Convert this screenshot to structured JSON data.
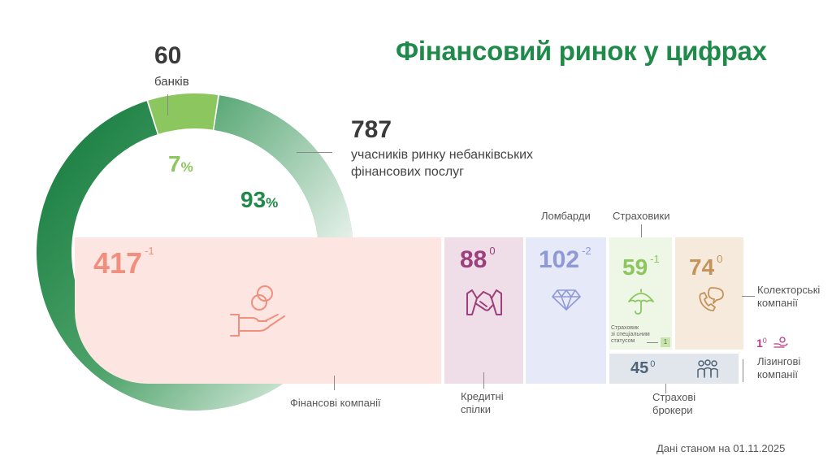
{
  "title": "Фінансовий ринок у цифрах",
  "banks": {
    "value": "60",
    "label": "банків",
    "percent": "7",
    "percent_sign": "%"
  },
  "nonbank": {
    "value": "787",
    "label_line1": "учасників ринку небанківських",
    "label_line2": "фінансових послуг",
    "percent": "93",
    "percent_sign": "%"
  },
  "segments": {
    "finance": {
      "value": "417",
      "change": "-1",
      "label": "Фінансові компанії",
      "color": "#f08f7e",
      "bg": "#fde6e2"
    },
    "credit_unions": {
      "value": "88",
      "change": "0",
      "label_line1": "Кредитні",
      "label_line2": "спілки",
      "color": "#9c3f7c",
      "bg": "#efdde7"
    },
    "pawnshops": {
      "value": "102",
      "change": "-2",
      "label": "Ломбарди",
      "color": "#8f99d6",
      "bg": "#e6e9f7"
    },
    "insurers": {
      "value": "59",
      "change": "-1",
      "label": "Страховики",
      "color": "#8cc65f",
      "bg": "#eef6e6",
      "special_label_1": "Страховик",
      "special_label_2": "зі спеціальним",
      "special_label_3": "статусом",
      "special_value": "1"
    },
    "collectors": {
      "value": "74",
      "change": "0",
      "label_line1": "Колекторські",
      "label_line2": "компанії",
      "color": "#c4935b",
      "bg": "#f6eadd"
    },
    "brokers": {
      "value": "45",
      "change": "0",
      "label_line1": "Страхові",
      "label_line2": "брокери",
      "color": "#4f6478",
      "bg": "#e0e6ec"
    },
    "leasing": {
      "value": "1",
      "change": "0",
      "label_line1": "Лізингові",
      "label_line2": "компанії",
      "color": "#b93f86"
    }
  },
  "footnote": "Дані станом на 01.11.2025",
  "chart_data": {
    "type": "pie",
    "categories": [
      "банків",
      "учасників ринку небанківських фінансових послуг"
    ],
    "values": [
      60,
      787
    ],
    "percent": [
      7,
      93
    ],
    "breakdown": {
      "categories": [
        "Фінансові компанії",
        "Кредитні спілки",
        "Ломбарди",
        "Страховики",
        "Колекторські компанії",
        "Страхові брокери",
        "Лізингові компанії"
      ],
      "values": [
        417,
        88,
        102,
        59,
        74,
        45,
        1
      ],
      "change": [
        -1,
        0,
        -2,
        -1,
        0,
        0,
        0
      ]
    },
    "colors": {
      "banks": "#8cc65f",
      "nonbank": "#1f8a4a"
    }
  }
}
